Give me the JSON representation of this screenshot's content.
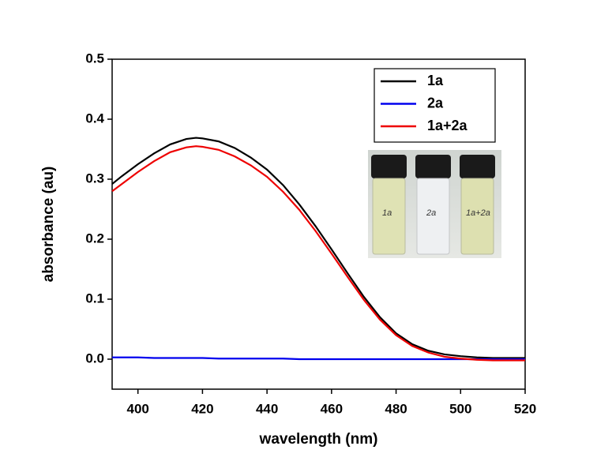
{
  "chart_data": {
    "type": "line",
    "xlabel": "wavelength (nm)",
    "ylabel": "absorbance (au)",
    "x": [
      392,
      395,
      400,
      405,
      410,
      415,
      418,
      420,
      425,
      430,
      435,
      440,
      445,
      450,
      455,
      460,
      465,
      470,
      475,
      480,
      485,
      490,
      495,
      500,
      505,
      510,
      515,
      520
    ],
    "series": [
      {
        "name": "1a",
        "color": "#000000",
        "values": [
          0.292,
          0.305,
          0.325,
          0.343,
          0.358,
          0.367,
          0.369,
          0.368,
          0.363,
          0.352,
          0.336,
          0.316,
          0.29,
          0.258,
          0.222,
          0.183,
          0.143,
          0.104,
          0.07,
          0.043,
          0.025,
          0.014,
          0.008,
          0.005,
          0.003,
          0.002,
          0.002,
          0.002
        ]
      },
      {
        "name": "2a",
        "color": "#0000ee",
        "values": [
          0.003,
          0.003,
          0.003,
          0.002,
          0.002,
          0.002,
          0.002,
          0.002,
          0.001,
          0.001,
          0.001,
          0.001,
          0.001,
          0.0,
          0.0,
          0.0,
          0.0,
          0.0,
          0.0,
          0.0,
          0.0,
          0.0,
          0.0,
          0.0,
          0.0,
          0.0,
          0.0,
          0.0
        ]
      },
      {
        "name": "1a+2a",
        "color": "#ee0000",
        "values": [
          0.28,
          0.292,
          0.312,
          0.33,
          0.345,
          0.353,
          0.355,
          0.354,
          0.349,
          0.338,
          0.323,
          0.304,
          0.279,
          0.249,
          0.214,
          0.176,
          0.137,
          0.099,
          0.066,
          0.04,
          0.022,
          0.011,
          0.004,
          0.001,
          -0.001,
          -0.002,
          -0.002,
          -0.002
        ]
      }
    ],
    "xlim": [
      392,
      520
    ],
    "xticks": [
      400,
      420,
      440,
      460,
      480,
      500,
      520
    ],
    "ylim": [
      -0.05,
      0.5
    ],
    "yticks": [
      {
        "value": 0,
        "label": "0.0"
      },
      0.1,
      0.2,
      0.3,
      0.4,
      0.5
    ],
    "legend": "top-right",
    "inset_labels": [
      "1a",
      "2a",
      "1a+2a"
    ]
  }
}
